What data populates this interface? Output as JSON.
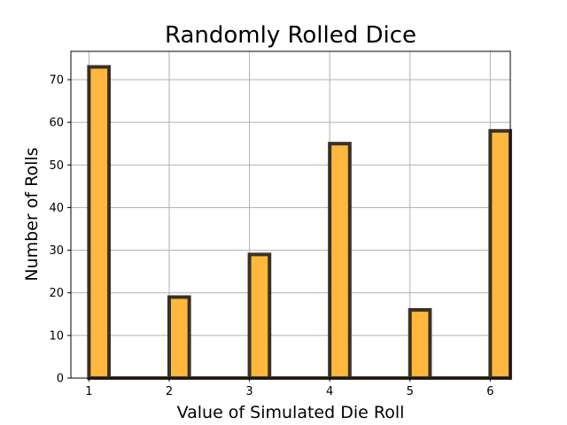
{
  "chart_data": {
    "type": "bar",
    "title": "Randomly Rolled Dice",
    "xlabel": "Value of Simulated Die Roll",
    "ylabel": "Number of Rolls",
    "x": [
      1,
      2,
      3,
      4,
      5,
      6
    ],
    "values": [
      73,
      19,
      29,
      55,
      16,
      58
    ],
    "xlim": [
      0.775,
      6.25
    ],
    "ylim": [
      0,
      76.65
    ],
    "xticks": [
      1,
      2,
      3,
      4,
      5,
      6
    ],
    "yticks": [
      0,
      10,
      20,
      30,
      40,
      50,
      60,
      70
    ],
    "grid": true,
    "legend": "none",
    "colors": {
      "bar_fill": "#ffb83d",
      "bar_edge": "#3a3126",
      "grid": "#b0b0b0"
    }
  }
}
